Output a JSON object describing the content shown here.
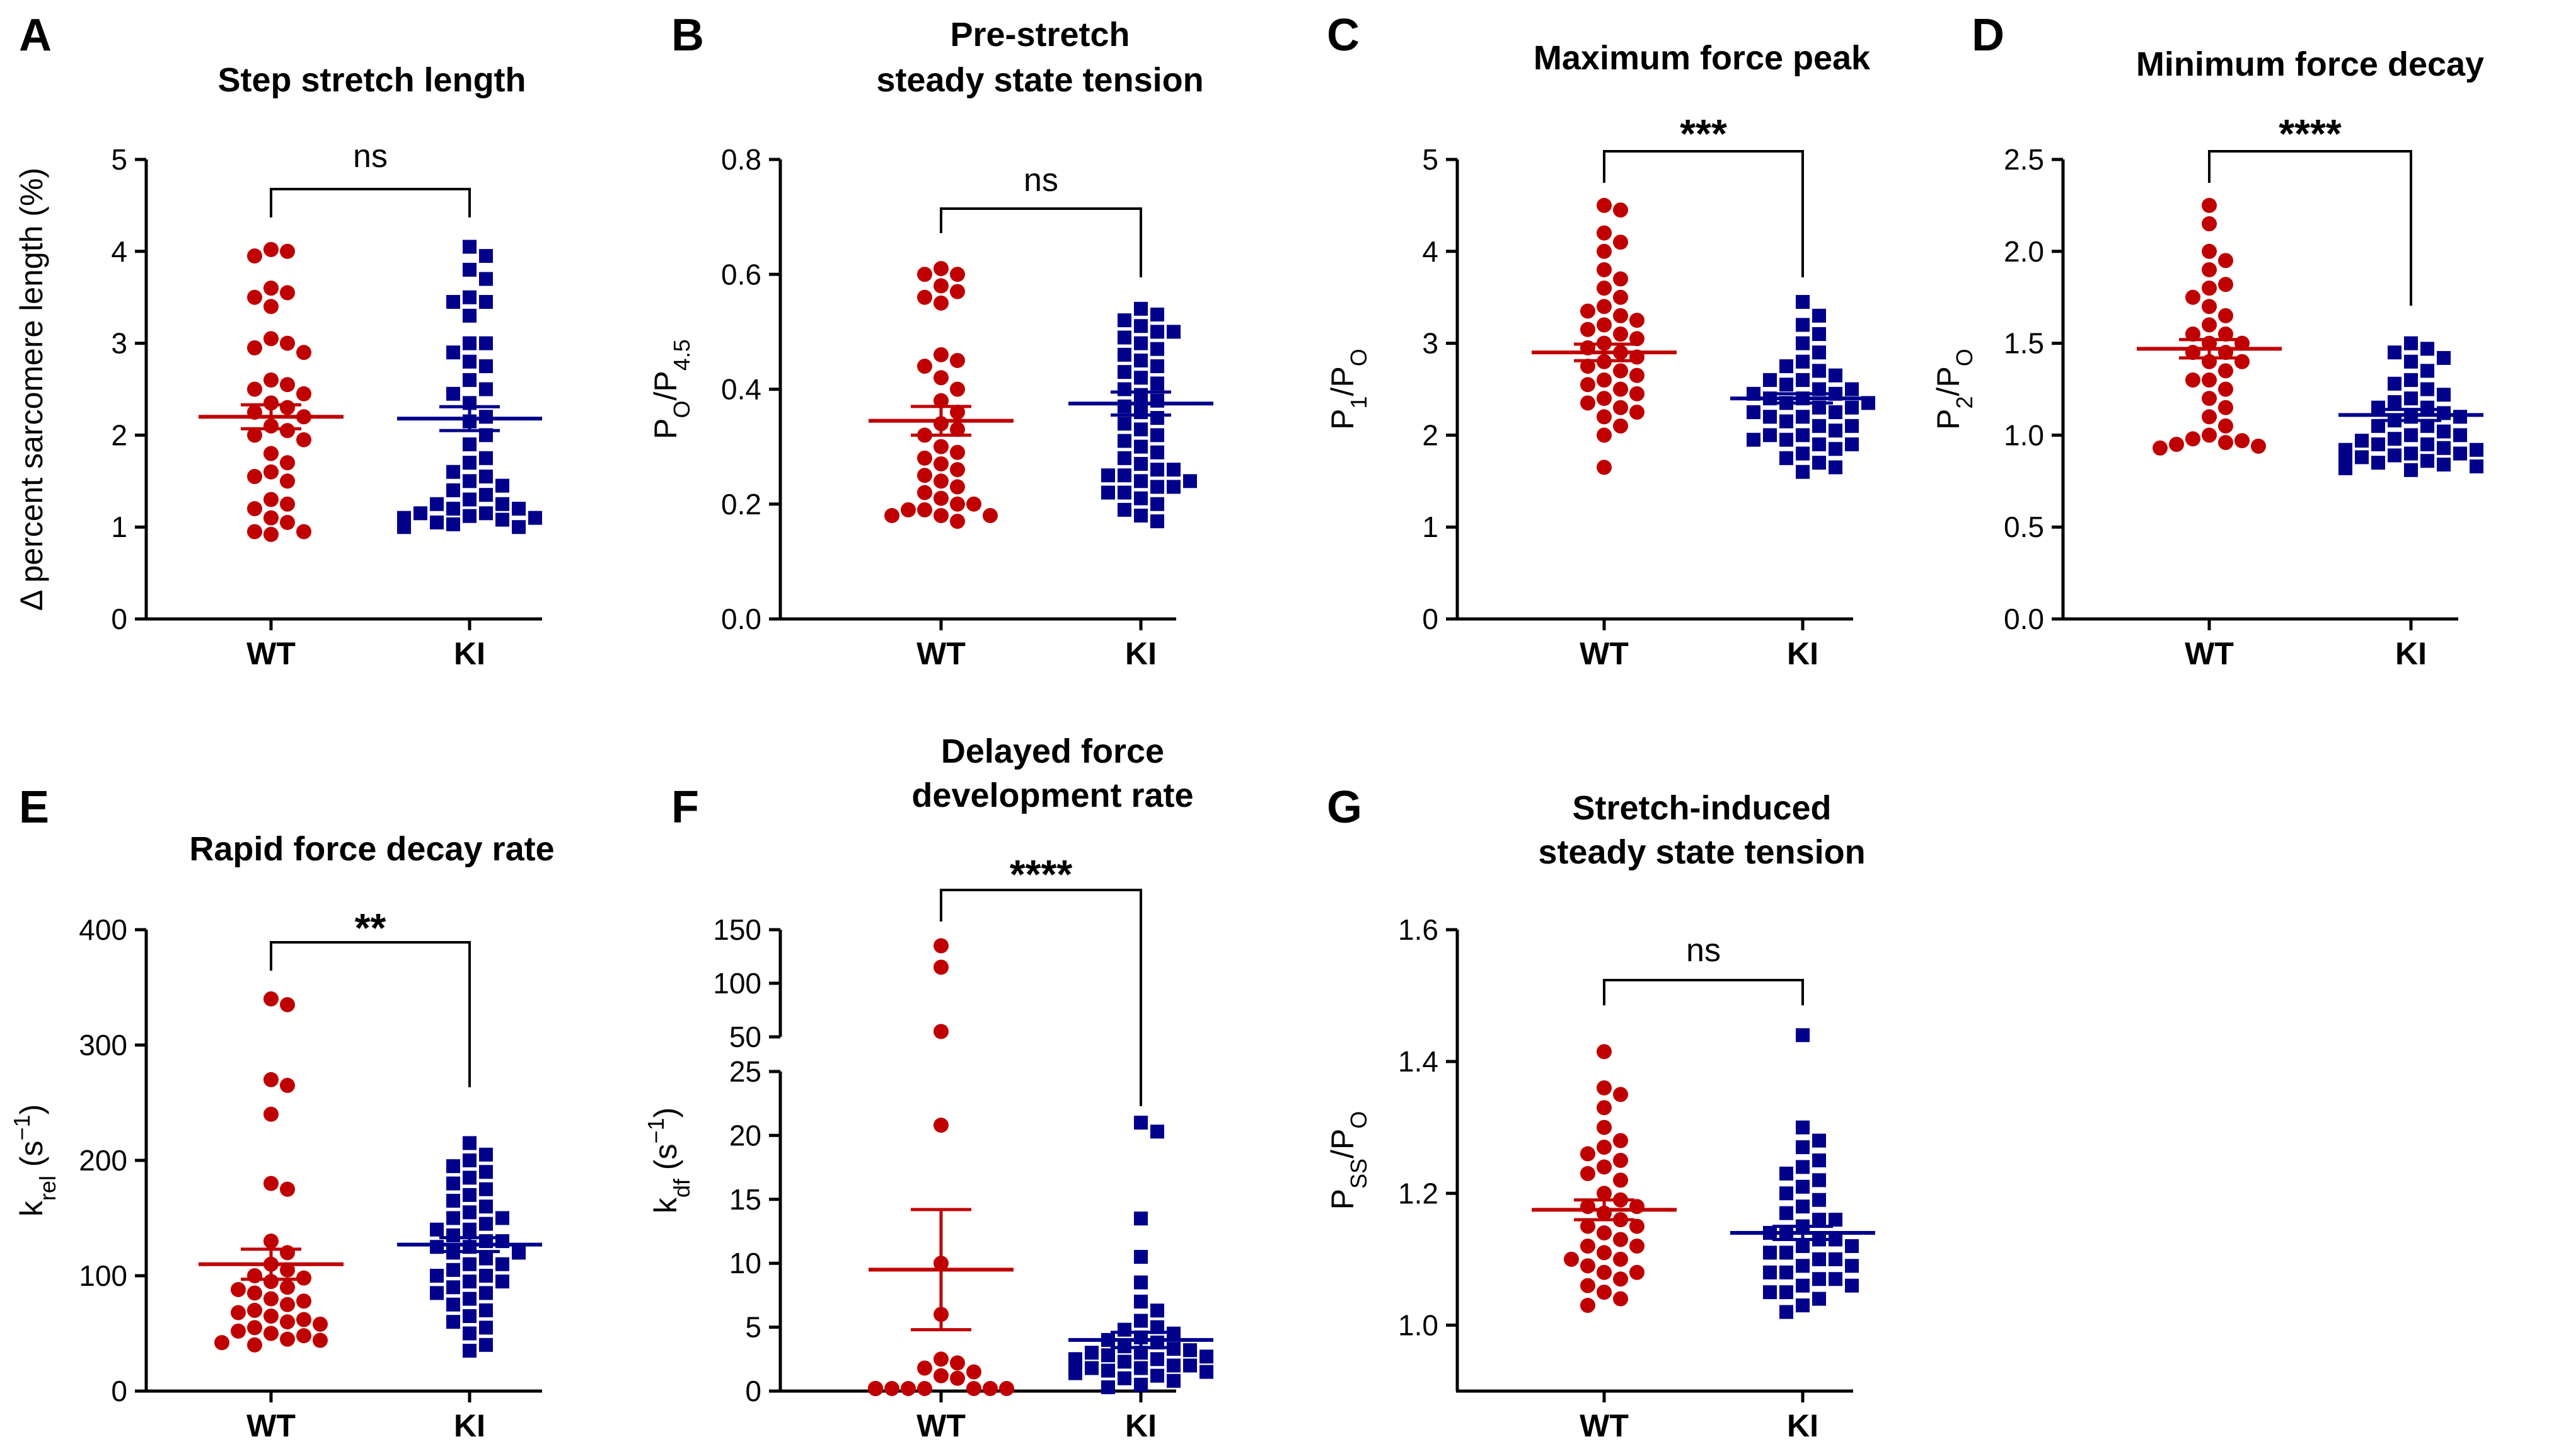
{
  "colors": {
    "WT": "#C00000",
    "KI": "#00008B",
    "axis": "#000000"
  },
  "chart_data": [
    {
      "id": "A",
      "type": "scatter",
      "letter": "A",
      "title_lines": [
        "Step stretch length"
      ],
      "ylabel": "Δ percent sarcomere length (%)",
      "ylim": [
        0,
        5
      ],
      "yticks": [
        0,
        1,
        2,
        3,
        4,
        5
      ],
      "categories": [
        "WT",
        "KI"
      ],
      "significance": "ns",
      "series": [
        {
          "name": "WT",
          "marker": "circle",
          "mean": 2.2,
          "sem": 0.13,
          "values": [
            4.0,
            4.02,
            3.95,
            3.6,
            3.55,
            3.5,
            3.4,
            3.05,
            3.0,
            2.95,
            2.9,
            2.6,
            2.55,
            2.5,
            2.45,
            2.35,
            2.3,
            2.25,
            2.2,
            2.1,
            2.05,
            2.0,
            1.95,
            1.8,
            1.7,
            1.6,
            1.55,
            1.5,
            1.3,
            1.25,
            1.2,
            1.1,
            1.05,
            0.95,
            0.95,
            0.92
          ]
        },
        {
          "name": "KI",
          "marker": "square",
          "mean": 2.18,
          "sem": 0.13,
          "values": [
            4.05,
            3.95,
            3.8,
            3.7,
            3.5,
            3.45,
            3.45,
            3.3,
            3.0,
            3.0,
            2.9,
            2.8,
            2.75,
            2.6,
            2.5,
            2.45,
            2.35,
            2.2,
            2.15,
            2.0,
            1.9,
            1.75,
            1.7,
            1.6,
            1.55,
            1.5,
            1.45,
            1.4,
            1.35,
            1.3,
            1.25,
            1.25,
            1.2,
            1.2,
            1.15,
            1.15,
            1.12,
            1.1,
            1.1,
            1.08,
            1.05,
            1.05,
            1.03,
            1.0,
            1.0
          ]
        }
      ]
    },
    {
      "id": "B",
      "type": "scatter",
      "letter": "B",
      "title_lines": [
        "Pre-stretch",
        "steady state tension"
      ],
      "ylabel": "PO/P4.5",
      "ylim": [
        0,
        0.8
      ],
      "yticks": [
        0.0,
        0.2,
        0.4,
        0.6,
        0.8
      ],
      "tick_labels": [
        "0.0",
        "0.2",
        "0.4",
        "0.6",
        "0.8"
      ],
      "categories": [
        "WT",
        "KI"
      ],
      "significance": "ns",
      "series": [
        {
          "name": "WT",
          "marker": "circle",
          "mean": 0.345,
          "sem": 0.025,
          "values": [
            0.61,
            0.6,
            0.6,
            0.58,
            0.57,
            0.56,
            0.55,
            0.46,
            0.45,
            0.44,
            0.42,
            0.4,
            0.38,
            0.36,
            0.34,
            0.33,
            0.32,
            0.3,
            0.29,
            0.28,
            0.27,
            0.26,
            0.25,
            0.24,
            0.23,
            0.22,
            0.21,
            0.2,
            0.2,
            0.19,
            0.19,
            0.18,
            0.18,
            0.18,
            0.17
          ]
        },
        {
          "name": "KI",
          "marker": "square",
          "mean": 0.375,
          "sem": 0.02,
          "values": [
            0.54,
            0.53,
            0.52,
            0.51,
            0.5,
            0.5,
            0.49,
            0.48,
            0.47,
            0.46,
            0.45,
            0.44,
            0.43,
            0.42,
            0.41,
            0.4,
            0.39,
            0.38,
            0.37,
            0.36,
            0.35,
            0.34,
            0.33,
            0.32,
            0.31,
            0.3,
            0.29,
            0.28,
            0.27,
            0.26,
            0.26,
            0.25,
            0.25,
            0.24,
            0.24,
            0.23,
            0.23,
            0.22,
            0.22,
            0.21,
            0.2,
            0.19,
            0.18,
            0.17
          ]
        }
      ]
    },
    {
      "id": "C",
      "type": "scatter",
      "letter": "C",
      "title_lines": [
        "Maximum force peak"
      ],
      "ylabel": "P1/PO",
      "ylim": [
        0,
        5
      ],
      "yticks": [
        0,
        1,
        2,
        3,
        4,
        5
      ],
      "categories": [
        "WT",
        "KI"
      ],
      "significance": "***",
      "series": [
        {
          "name": "WT",
          "marker": "circle",
          "mean": 2.9,
          "sem": 0.09,
          "values": [
            4.5,
            4.45,
            4.2,
            4.1,
            4.0,
            3.8,
            3.7,
            3.6,
            3.5,
            3.4,
            3.35,
            3.3,
            3.25,
            3.2,
            3.15,
            3.1,
            3.05,
            3.0,
            2.95,
            2.9,
            2.85,
            2.8,
            2.75,
            2.7,
            2.65,
            2.6,
            2.55,
            2.5,
            2.45,
            2.4,
            2.35,
            2.3,
            2.25,
            2.2,
            2.1,
            2.0,
            1.65
          ]
        },
        {
          "name": "KI",
          "marker": "square",
          "mean": 2.4,
          "sem": 0.05,
          "values": [
            3.45,
            3.3,
            3.2,
            3.1,
            3.0,
            2.9,
            2.8,
            2.75,
            2.7,
            2.65,
            2.6,
            2.6,
            2.55,
            2.5,
            2.5,
            2.45,
            2.45,
            2.4,
            2.4,
            2.35,
            2.35,
            2.3,
            2.3,
            2.25,
            2.25,
            2.2,
            2.2,
            2.15,
            2.1,
            2.1,
            2.05,
            2.0,
            2.0,
            1.95,
            1.95,
            1.9,
            1.9,
            1.85,
            1.8,
            1.75,
            1.7,
            1.65,
            1.6
          ]
        }
      ]
    },
    {
      "id": "D",
      "type": "scatter",
      "letter": "D",
      "title_lines": [
        "Minimum force decay"
      ],
      "ylabel": "P2/PO",
      "ylim": [
        0,
        2.5
      ],
      "yticks": [
        0.0,
        0.5,
        1.0,
        1.5,
        2.0,
        2.5
      ],
      "tick_labels": [
        "0.0",
        "0.5",
        "1.0",
        "1.5",
        "2.0",
        "2.5"
      ],
      "categories": [
        "WT",
        "KI"
      ],
      "significance": "****",
      "series": [
        {
          "name": "WT",
          "marker": "circle",
          "mean": 1.47,
          "sem": 0.05,
          "values": [
            2.25,
            2.15,
            2.0,
            1.95,
            1.9,
            1.82,
            1.8,
            1.75,
            1.7,
            1.65,
            1.6,
            1.55,
            1.55,
            1.5,
            1.5,
            1.45,
            1.45,
            1.4,
            1.4,
            1.35,
            1.3,
            1.3,
            1.25,
            1.2,
            1.15,
            1.1,
            1.05,
            1.0,
            0.98,
            0.97,
            0.96,
            0.95,
            0.94,
            0.93
          ]
        },
        {
          "name": "KI",
          "marker": "square",
          "mean": 1.11,
          "sem": 0.03,
          "values": [
            1.5,
            1.47,
            1.45,
            1.42,
            1.4,
            1.35,
            1.3,
            1.28,
            1.25,
            1.22,
            1.2,
            1.18,
            1.15,
            1.15,
            1.12,
            1.1,
            1.1,
            1.08,
            1.05,
            1.05,
            1.02,
            1.0,
            1.0,
            0.98,
            0.97,
            0.95,
            0.95,
            0.93,
            0.92,
            0.92,
            0.9,
            0.9,
            0.89,
            0.88,
            0.88,
            0.87,
            0.86,
            0.85,
            0.85,
            0.84,
            0.83,
            0.82,
            0.81
          ]
        }
      ]
    },
    {
      "id": "E",
      "type": "scatter",
      "letter": "E",
      "title_lines": [
        "Rapid force decay rate"
      ],
      "ylabel": "krel (s−1)",
      "ylim": [
        0,
        400
      ],
      "yticks": [
        0,
        100,
        200,
        300,
        400
      ],
      "categories": [
        "WT",
        "KI"
      ],
      "significance": "**",
      "series": [
        {
          "name": "WT",
          "marker": "circle",
          "mean": 110,
          "sem": 13,
          "values": [
            340,
            335,
            270,
            265,
            240,
            180,
            175,
            130,
            120,
            110,
            105,
            100,
            98,
            95,
            90,
            88,
            85,
            80,
            78,
            75,
            70,
            68,
            65,
            62,
            60,
            58,
            55,
            52,
            50,
            48,
            45,
            44,
            42,
            40
          ]
        },
        {
          "name": "KI",
          "marker": "square",
          "mean": 127,
          "sem": 6,
          "values": [
            215,
            205,
            200,
            195,
            190,
            185,
            180,
            175,
            170,
            165,
            160,
            155,
            150,
            150,
            145,
            140,
            140,
            135,
            130,
            130,
            125,
            125,
            120,
            120,
            115,
            110,
            110,
            105,
            100,
            100,
            95,
            95,
            90,
            85,
            85,
            80,
            75,
            70,
            65,
            60,
            55,
            50,
            40,
            35
          ]
        }
      ]
    },
    {
      "id": "F",
      "type": "scatter",
      "letter": "F",
      "title_lines": [
        "Delayed force",
        "development rate"
      ],
      "ylabel": "kdf (s−1)",
      "broken_axis": true,
      "ylim_lower": [
        0,
        25
      ],
      "yticks_lower": [
        0,
        5,
        10,
        15,
        20,
        25
      ],
      "ylim_upper": [
        50,
        150
      ],
      "yticks_upper": [
        50,
        100,
        150
      ],
      "categories": [
        "WT",
        "KI"
      ],
      "significance": "****",
      "series": [
        {
          "name": "WT",
          "marker": "circle",
          "mean": 9.5,
          "sem": 4.7,
          "values": [
            135,
            115,
            55,
            20.8,
            10,
            6,
            2.5,
            2.2,
            1.8,
            1.5,
            1.2,
            1.0,
            0.2,
            0.2,
            0.2,
            0.2,
            0.2,
            0.2,
            0.2,
            0.2,
            0.2,
            0.2,
            0.2,
            0.2,
            0.2,
            0.2,
            0.2,
            0.2,
            0.2
          ]
        },
        {
          "name": "KI",
          "marker": "square",
          "mean": 4.0,
          "sem": 0.6,
          "values": [
            21,
            20.3,
            13.5,
            10.5,
            8.5,
            7,
            6.3,
            5.5,
            5,
            4.8,
            4.5,
            4.2,
            4,
            3.8,
            3.5,
            3.3,
            3.2,
            3,
            3,
            2.8,
            2.7,
            2.5,
            2.5,
            2.3,
            2.2,
            2,
            2,
            1.8,
            1.8,
            1.6,
            1.5,
            1.4,
            1.2,
            1,
            0.8,
            0.5,
            0.3
          ]
        }
      ]
    },
    {
      "id": "G",
      "type": "scatter",
      "letter": "G",
      "title_lines": [
        "Stretch-induced",
        "steady state tension"
      ],
      "ylabel": "PSS/PO",
      "ylim": [
        0.9,
        1.6
      ],
      "yticks": [
        1.0,
        1.2,
        1.4,
        1.6
      ],
      "tick_labels": [
        "1.0",
        "1.2",
        "1.4",
        "1.6"
      ],
      "categories": [
        "WT",
        "KI"
      ],
      "significance": "ns",
      "series": [
        {
          "name": "WT",
          "marker": "circle",
          "mean": 1.175,
          "sem": 0.015,
          "values": [
            1.415,
            1.36,
            1.35,
            1.33,
            1.3,
            1.28,
            1.27,
            1.26,
            1.25,
            1.24,
            1.23,
            1.22,
            1.2,
            1.19,
            1.18,
            1.18,
            1.17,
            1.16,
            1.15,
            1.15,
            1.14,
            1.13,
            1.12,
            1.12,
            1.11,
            1.1,
            1.1,
            1.09,
            1.08,
            1.08,
            1.07,
            1.06,
            1.05,
            1.04,
            1.03
          ]
        },
        {
          "name": "KI",
          "marker": "square",
          "mean": 1.14,
          "sem": 0.01,
          "values": [
            1.44,
            1.3,
            1.28,
            1.27,
            1.25,
            1.24,
            1.23,
            1.22,
            1.21,
            1.2,
            1.19,
            1.18,
            1.17,
            1.16,
            1.16,
            1.15,
            1.14,
            1.14,
            1.13,
            1.13,
            1.12,
            1.12,
            1.11,
            1.11,
            1.1,
            1.1,
            1.09,
            1.09,
            1.08,
            1.08,
            1.07,
            1.07,
            1.06,
            1.06,
            1.05,
            1.05,
            1.04,
            1.03,
            1.02
          ]
        }
      ]
    }
  ]
}
